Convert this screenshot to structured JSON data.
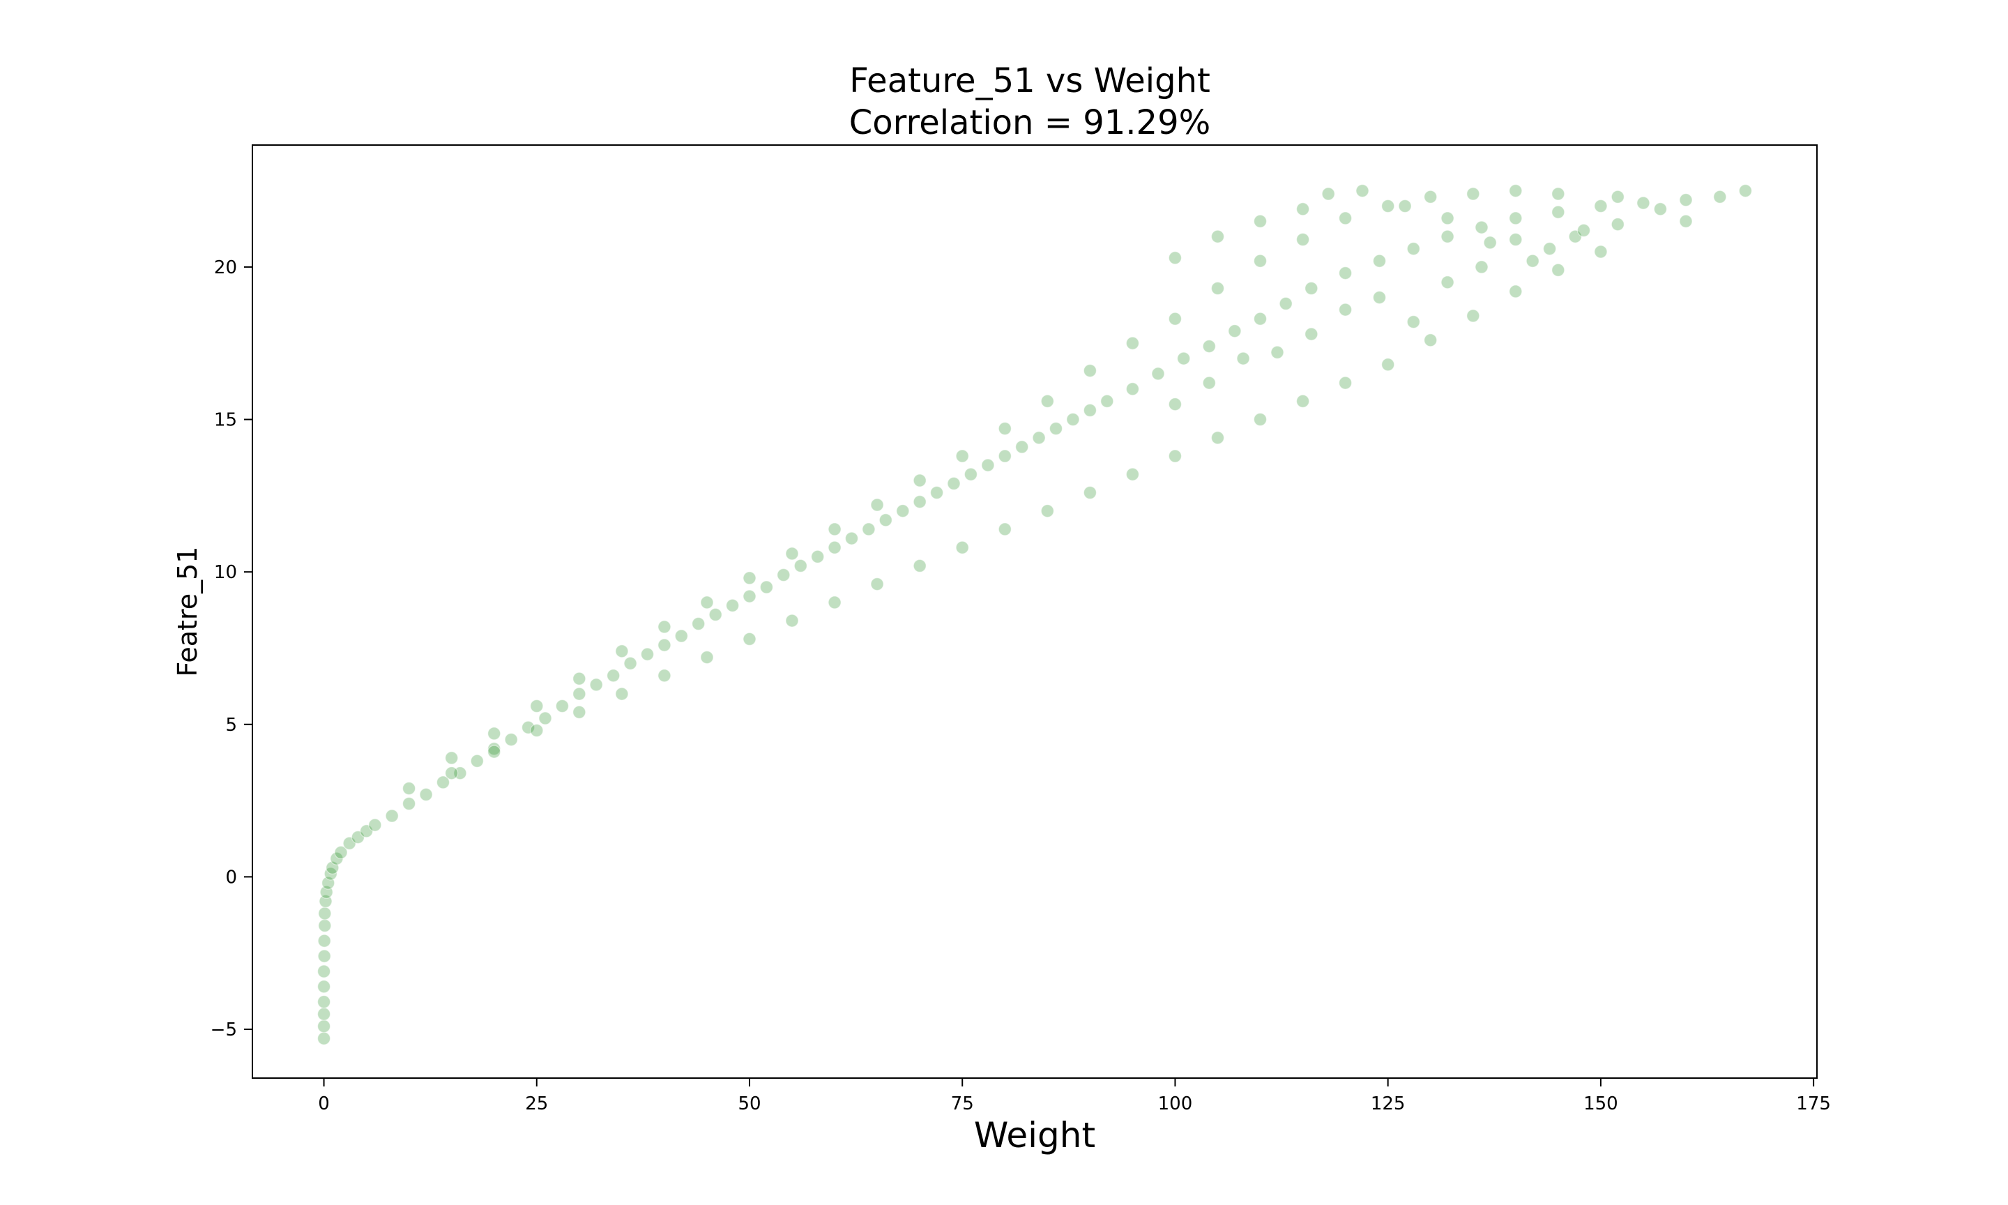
{
  "chart_data": {
    "type": "scatter",
    "title": [
      "Feature_51 vs Weight",
      "Correlation = 91.29%"
    ],
    "xlabel": "Weight",
    "ylabel": "Featre_51",
    "xlim": [
      -8.4,
      175.4
    ],
    "ylim": [
      -6.6,
      24.0
    ],
    "xticks": [
      0,
      25,
      50,
      75,
      100,
      125,
      150,
      175
    ],
    "yticks": [
      -5,
      0,
      5,
      10,
      15,
      20
    ],
    "grid": false,
    "legend": "none",
    "series": [
      {
        "color": "#228B22",
        "alpha": 0.28,
        "points": [
          [
            0,
            -5.3
          ],
          [
            0,
            -4.9
          ],
          [
            0,
            -4.5
          ],
          [
            0,
            -4.1
          ],
          [
            0,
            -3.6
          ],
          [
            0,
            -3.1
          ],
          [
            0.05,
            -2.6
          ],
          [
            0.05,
            -2.1
          ],
          [
            0.1,
            -1.6
          ],
          [
            0.1,
            -1.2
          ],
          [
            0.2,
            -0.8
          ],
          [
            0.3,
            -0.5
          ],
          [
            0.5,
            -0.2
          ],
          [
            0.8,
            0.1
          ],
          [
            1,
            0.3
          ],
          [
            1.5,
            0.6
          ],
          [
            2,
            0.8
          ],
          [
            3,
            1.1
          ],
          [
            4,
            1.3
          ],
          [
            5,
            1.5
          ],
          [
            6,
            1.7
          ],
          [
            8,
            2.0
          ],
          [
            10,
            2.4
          ],
          [
            12,
            2.7
          ],
          [
            14,
            3.1
          ],
          [
            16,
            3.4
          ],
          [
            18,
            3.8
          ],
          [
            20,
            4.2
          ],
          [
            22,
            4.5
          ],
          [
            24,
            4.9
          ],
          [
            26,
            5.2
          ],
          [
            28,
            5.6
          ],
          [
            30,
            6.0
          ],
          [
            32,
            6.3
          ],
          [
            34,
            6.6
          ],
          [
            36,
            7.0
          ],
          [
            38,
            7.3
          ],
          [
            40,
            7.6
          ],
          [
            42,
            7.9
          ],
          [
            44,
            8.3
          ],
          [
            46,
            8.6
          ],
          [
            48,
            8.9
          ],
          [
            50,
            9.2
          ],
          [
            52,
            9.5
          ],
          [
            54,
            9.9
          ],
          [
            56,
            10.2
          ],
          [
            58,
            10.5
          ],
          [
            60,
            10.8
          ],
          [
            62,
            11.1
          ],
          [
            64,
            11.4
          ],
          [
            66,
            11.7
          ],
          [
            68,
            12.0
          ],
          [
            70,
            12.3
          ],
          [
            72,
            12.6
          ],
          [
            74,
            12.9
          ],
          [
            76,
            13.2
          ],
          [
            78,
            13.5
          ],
          [
            80,
            13.8
          ],
          [
            82,
            14.1
          ],
          [
            84,
            14.4
          ],
          [
            86,
            14.7
          ],
          [
            88,
            15.0
          ],
          [
            90,
            15.3
          ],
          [
            92,
            15.6
          ],
          [
            95,
            16.0
          ],
          [
            98,
            16.5
          ],
          [
            101,
            17.0
          ],
          [
            104,
            17.4
          ],
          [
            107,
            17.9
          ],
          [
            110,
            18.3
          ],
          [
            113,
            18.8
          ],
          [
            116,
            19.3
          ],
          [
            120,
            19.8
          ],
          [
            124,
            20.2
          ],
          [
            128,
            20.6
          ],
          [
            132,
            21.0
          ],
          [
            136,
            21.3
          ],
          [
            140,
            21.6
          ],
          [
            145,
            21.8
          ],
          [
            150,
            22.0
          ],
          [
            155,
            22.1
          ],
          [
            160,
            22.2
          ],
          [
            164,
            22.3
          ],
          [
            167,
            22.5
          ],
          [
            10,
            2.9
          ],
          [
            15,
            3.9
          ],
          [
            20,
            4.7
          ],
          [
            25,
            5.6
          ],
          [
            30,
            6.5
          ],
          [
            35,
            7.4
          ],
          [
            40,
            8.2
          ],
          [
            45,
            9.0
          ],
          [
            50,
            9.8
          ],
          [
            55,
            10.6
          ],
          [
            60,
            11.4
          ],
          [
            65,
            12.2
          ],
          [
            70,
            13.0
          ],
          [
            75,
            13.8
          ],
          [
            80,
            14.7
          ],
          [
            85,
            15.6
          ],
          [
            90,
            16.6
          ],
          [
            95,
            17.5
          ],
          [
            100,
            18.3
          ],
          [
            105,
            19.3
          ],
          [
            110,
            20.2
          ],
          [
            115,
            20.9
          ],
          [
            120,
            21.6
          ],
          [
            125,
            22.0
          ],
          [
            130,
            22.3
          ],
          [
            135,
            22.4
          ],
          [
            140,
            22.5
          ],
          [
            145,
            22.4
          ],
          [
            15,
            3.4
          ],
          [
            20,
            4.1
          ],
          [
            25,
            4.8
          ],
          [
            30,
            5.4
          ],
          [
            35,
            6.0
          ],
          [
            40,
            6.6
          ],
          [
            45,
            7.2
          ],
          [
            50,
            7.8
          ],
          [
            55,
            8.4
          ],
          [
            60,
            9.0
          ],
          [
            65,
            9.6
          ],
          [
            70,
            10.2
          ],
          [
            75,
            10.8
          ],
          [
            80,
            11.4
          ],
          [
            85,
            12.0
          ],
          [
            90,
            12.6
          ],
          [
            95,
            13.2
          ],
          [
            100,
            13.8
          ],
          [
            105,
            14.4
          ],
          [
            110,
            15.0
          ],
          [
            115,
            15.6
          ],
          [
            120,
            16.2
          ],
          [
            125,
            16.8
          ],
          [
            130,
            17.6
          ],
          [
            135,
            18.4
          ],
          [
            140,
            19.2
          ],
          [
            145,
            19.9
          ],
          [
            150,
            20.5
          ],
          [
            100,
            20.3
          ],
          [
            105,
            21.0
          ],
          [
            110,
            21.5
          ],
          [
            115,
            21.9
          ],
          [
            118,
            22.4
          ],
          [
            122,
            22.5
          ],
          [
            127,
            22.0
          ],
          [
            132,
            21.6
          ],
          [
            137,
            20.8
          ],
          [
            142,
            20.2
          ],
          [
            147,
            21.0
          ],
          [
            152,
            21.4
          ],
          [
            157,
            21.9
          ],
          [
            160,
            21.5
          ],
          [
            100,
            15.5
          ],
          [
            104,
            16.2
          ],
          [
            108,
            17.0
          ],
          [
            112,
            17.2
          ],
          [
            116,
            17.8
          ],
          [
            120,
            18.6
          ],
          [
            124,
            19.0
          ],
          [
            128,
            18.2
          ],
          [
            132,
            19.5
          ],
          [
            136,
            20.0
          ],
          [
            140,
            20.9
          ],
          [
            144,
            20.6
          ],
          [
            148,
            21.2
          ],
          [
            152,
            22.3
          ]
        ]
      }
    ]
  }
}
